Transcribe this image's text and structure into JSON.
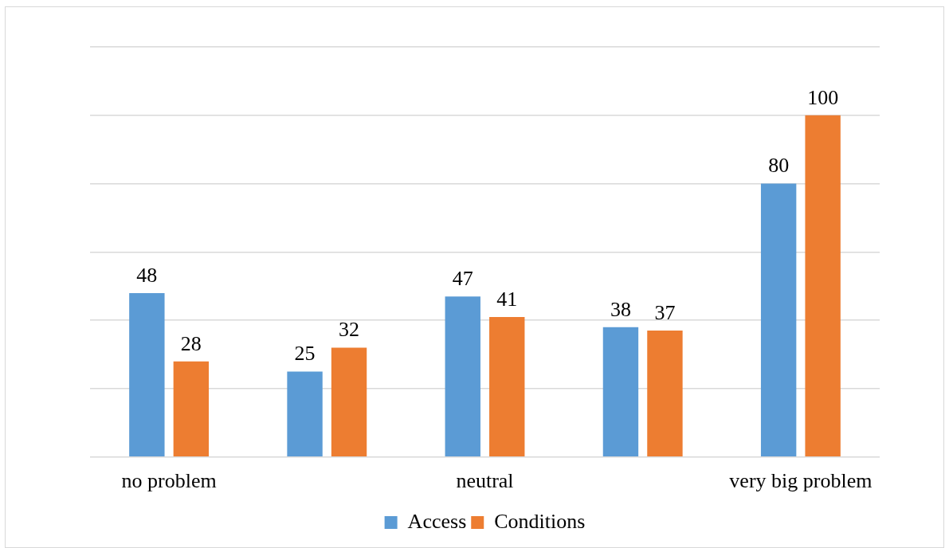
{
  "chart_data": {
    "type": "bar",
    "categories": [
      "no problem",
      null,
      "neutral",
      null,
      "very big problem"
    ],
    "series": [
      {
        "name": "Access",
        "color": "#5b9bd5",
        "values": [
          48,
          25,
          47,
          38,
          80
        ]
      },
      {
        "name": "Conditions",
        "color": "#ed7d31",
        "values": [
          28,
          32,
          41,
          37,
          100
        ]
      }
    ],
    "ylim": [
      0,
      120
    ],
    "yticks": [
      {
        "value": 0,
        "label": null
      },
      {
        "value": 20,
        "label": null
      },
      {
        "value": 40,
        "label": null
      },
      {
        "value": 60,
        "label": null
      },
      {
        "value": 80,
        "label": null
      },
      {
        "value": 100,
        "label": null
      },
      {
        "value": 120,
        "label": null
      }
    ],
    "tick_labels": "x",
    "grid": "y",
    "legend": "bottom",
    "data_labels": true
  }
}
